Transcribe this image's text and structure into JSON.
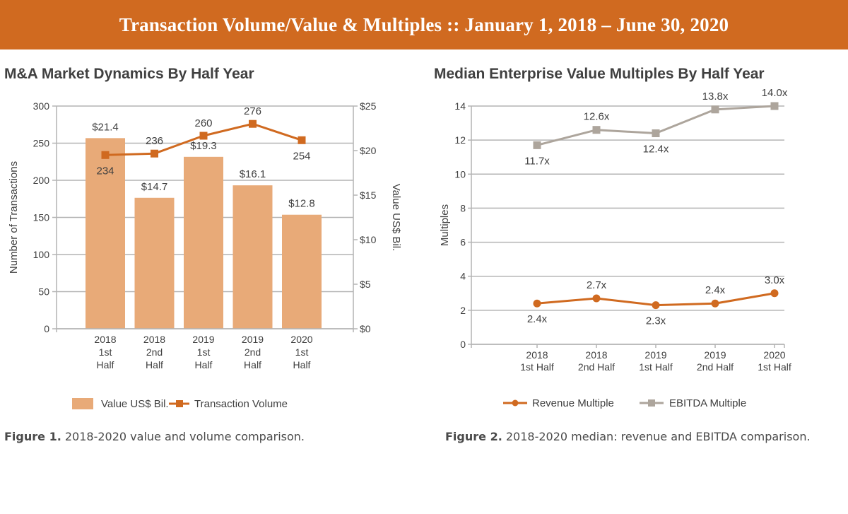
{
  "banner": {
    "title": "Transaction Volume/Value & Multiples  ::  January 1, 2018 – June 30, 2020",
    "background_color": "#d06a20"
  },
  "figure1": {
    "caption_label": "Figure 1.",
    "caption_text": " 2018-2020 value and volume comparison."
  },
  "figure2": {
    "caption_label": "Figure 2.",
    "caption_text": " 2018-2020 median: revenue and EBITDA comparison."
  },
  "chart_data": [
    {
      "type": "bar",
      "title": "M&A Market Dynamics By Half Year",
      "categories": [
        "2018 1st Half",
        "2018 2nd Half",
        "2019 1st Half",
        "2019 2nd Half",
        "2020 1st Half"
      ],
      "category_lines": [
        [
          "2018",
          "1st",
          "Half"
        ],
        [
          "2018",
          "2nd",
          "Half"
        ],
        [
          "2019",
          "1st",
          "Half"
        ],
        [
          "2019",
          "2nd",
          "Half"
        ],
        [
          "2020",
          "1st",
          "Half"
        ]
      ],
      "ylabel": "Number of Transactions",
      "ylabel_right": "Value US$ Bil.",
      "ylim": [
        0,
        300
      ],
      "yticks": [
        0,
        50,
        100,
        150,
        200,
        250,
        300
      ],
      "ylim_right": [
        0,
        25
      ],
      "yticks_right": [
        0,
        5,
        10,
        15,
        20,
        25
      ],
      "yticks_right_labels": [
        "$0",
        "$5",
        "$10",
        "$15",
        "$20",
        "$25"
      ],
      "grid": true,
      "legend_position": "bottom",
      "series": [
        {
          "name": "Value US$ Bil.",
          "kind": "bar",
          "axis": "right",
          "color": "#e8aa78",
          "values": [
            21.4,
            14.7,
            19.3,
            16.1,
            12.8
          ],
          "labels": [
            "$21.4",
            "$14.7",
            "$19.3",
            "$16.1",
            "$12.8"
          ]
        },
        {
          "name": "Transaction Volume",
          "kind": "line",
          "marker": "square",
          "axis": "left",
          "color": "#d06a20",
          "values": [
            234,
            236,
            260,
            276,
            254
          ],
          "labels": [
            "234",
            "236",
            "260",
            "276",
            "254"
          ]
        }
      ]
    },
    {
      "type": "line",
      "title": "Median Enterprise Value Multiples By Half Year",
      "categories": [
        "2018 1st Half",
        "2018 2nd Half",
        "2019 1st Half",
        "2019 2nd Half",
        "2020 1st Half"
      ],
      "category_lines": [
        [
          "2018",
          "1st Half"
        ],
        [
          "2018",
          "2nd Half"
        ],
        [
          "2019",
          "1st Half"
        ],
        [
          "2019",
          "2nd Half"
        ],
        [
          "2020",
          "1st Half"
        ]
      ],
      "ylabel": "Multiples",
      "ylim": [
        0,
        14
      ],
      "yticks": [
        0,
        2,
        4,
        6,
        8,
        10,
        12,
        14
      ],
      "grid": true,
      "legend_position": "bottom",
      "series": [
        {
          "name": "Revenue Multiple",
          "marker": "circle",
          "color": "#d06a20",
          "values": [
            2.4,
            2.7,
            2.3,
            2.4,
            3.0
          ],
          "labels": [
            "2.4x",
            "2.7x",
            "2.3x",
            "2.4x",
            "3.0x"
          ],
          "label_side": [
            "below",
            "above",
            "below",
            "above",
            "above"
          ]
        },
        {
          "name": "EBITDA Multiple",
          "marker": "square",
          "color": "#ada59c",
          "values": [
            11.7,
            12.6,
            12.4,
            13.8,
            14.0
          ],
          "labels": [
            "11.7x",
            "12.6x",
            "12.4x",
            "13.8x",
            "14.0x"
          ],
          "label_side": [
            "below",
            "above",
            "below",
            "above",
            "above"
          ]
        }
      ]
    }
  ]
}
